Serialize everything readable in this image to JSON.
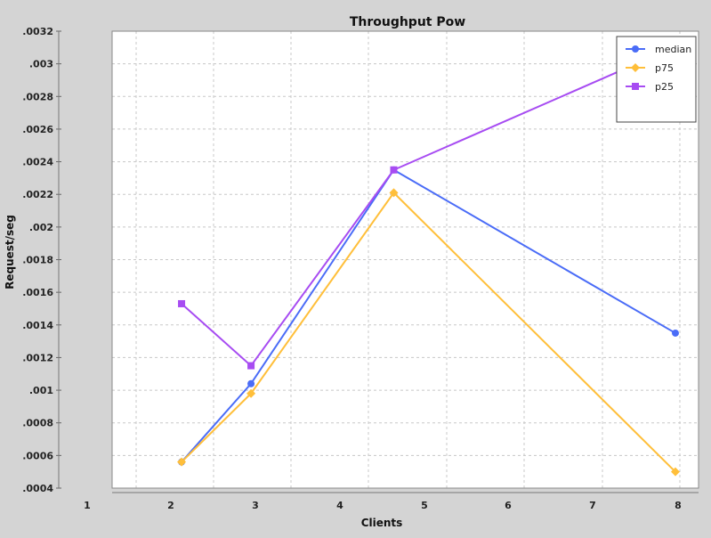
{
  "chart_data": {
    "type": "line",
    "title": "Throughput Pow",
    "xlabel": "Clients",
    "ylabel": "Request/seg",
    "x_tick_labels": [
      "1",
      "2",
      "3",
      "4",
      "5",
      "6",
      "7",
      "8"
    ],
    "y_tick_labels": [
      ".0004",
      ".0006",
      ".0008",
      ".001",
      ".0012",
      ".0014",
      ".0016",
      ".0018",
      ".002",
      ".0022",
      ".0024",
      ".0026",
      ".0028",
      ".003",
      ".0032"
    ],
    "xlim": [
      0.7,
      8.3
    ],
    "ylim": [
      0.0004,
      0.0032
    ],
    "grid": true,
    "legend_position": "top-right",
    "series": [
      {
        "name": "median",
        "color": "#4a6cf7",
        "marker": "circle",
        "points": [
          [
            1.6,
            0.00056
          ],
          [
            2.5,
            0.00104
          ],
          [
            4.35,
            0.00235
          ],
          [
            8.0,
            0.00135
          ]
        ]
      },
      {
        "name": "p75",
        "color": "#ffbf3a",
        "marker": "diamond",
        "points": [
          [
            1.6,
            0.00056
          ],
          [
            2.5,
            0.00098
          ],
          [
            4.35,
            0.00221
          ],
          [
            8.0,
            0.0005
          ]
        ]
      },
      {
        "name": "p25",
        "color": "#a74cf2",
        "marker": "square",
        "points": [
          [
            1.6,
            0.00153
          ],
          [
            2.5,
            0.00115
          ],
          [
            4.35,
            0.00235
          ],
          [
            7.3,
            0.00296
          ]
        ]
      }
    ]
  }
}
